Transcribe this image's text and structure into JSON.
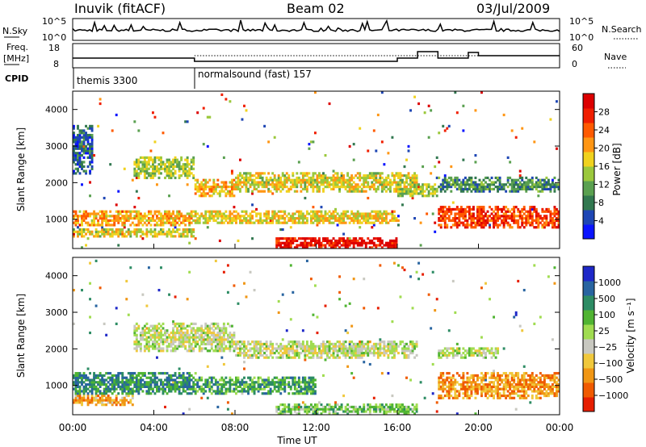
{
  "header": {
    "station": "Inuvik (fitACF)",
    "beam": "Beam 02",
    "date": "03/Jul/2009"
  },
  "info_panels": {
    "nsky_label": "N.Sky",
    "nsky_ticks": [
      "10^5",
      "10^0"
    ],
    "nsearch_label": "N.Search",
    "nsearch_ticks": [
      "10^5",
      "10^0"
    ],
    "freq_label_line1": "Freq.",
    "freq_label_line2": "[MHz]",
    "freq_ticks": [
      "18",
      "8"
    ],
    "nave_label": "Nave",
    "nave_ticks": [
      "60",
      "0"
    ],
    "cpid_label": "CPID",
    "cpid_segments": [
      {
        "label": "themis 3300",
        "start_hour": 0
      },
      {
        "label": "normalsound (fast) 157",
        "start_hour": 6
      }
    ]
  },
  "power_colorbar": {
    "label": "Power [dB]",
    "ticks": [
      "28",
      "24",
      "20",
      "16",
      "12",
      "8",
      "4"
    ],
    "colors": [
      "#0a14ff",
      "#1e46b4",
      "#327850",
      "#5aa050",
      "#9bc83c",
      "#f0d21e",
      "#ff9614",
      "#ff5a00",
      "#f01e00",
      "#dc0000"
    ]
  },
  "velocity_colorbar": {
    "label": "Velocity [m s⁻¹]",
    "ticks": [
      "1000",
      "500",
      "100",
      "25",
      "−25",
      "−100",
      "−500",
      "−1000"
    ],
    "colors": [
      "#1e28c8",
      "#2864a0",
      "#2d8c64",
      "#50b432",
      "#a0dc50",
      "#c8c8c0",
      "#f0c83c",
      "#f09614",
      "#f05a00",
      "#e61e00"
    ]
  },
  "chart_data": [
    {
      "type": "heatmap",
      "name": "Power",
      "ylabel": "Slant Range [km]",
      "ylim": [
        200,
        4500
      ],
      "xlim_hours": [
        0,
        24
      ],
      "yticks": [
        1000,
        2000,
        3000,
        4000
      ],
      "bands": [
        {
          "start": 0,
          "end": 6,
          "center": 1050,
          "width": 220,
          "level": 0.62
        },
        {
          "start": 0,
          "end": 6,
          "center": 650,
          "width": 120,
          "level": 0.52
        },
        {
          "start": 3,
          "end": 6,
          "center": 2400,
          "width": 300,
          "level": 0.45
        },
        {
          "start": 6,
          "end": 8,
          "center": 1850,
          "width": 250,
          "level": 0.6
        },
        {
          "start": 6,
          "end": 16,
          "center": 1050,
          "width": 200,
          "level": 0.55
        },
        {
          "start": 8,
          "end": 17,
          "center": 2000,
          "width": 260,
          "level": 0.52
        },
        {
          "start": 10,
          "end": 16,
          "center": 350,
          "width": 180,
          "level": 0.92
        },
        {
          "start": 16,
          "end": 18,
          "center": 1800,
          "width": 200,
          "level": 0.45
        },
        {
          "start": 18,
          "end": 24,
          "center": 1050,
          "width": 300,
          "level": 0.8
        },
        {
          "start": 18,
          "end": 24,
          "center": 1950,
          "width": 200,
          "level": 0.3
        },
        {
          "start": 0,
          "end": 1,
          "center": 2900,
          "width": 700,
          "level": 0.2
        }
      ]
    },
    {
      "type": "heatmap",
      "name": "Velocity",
      "ylabel": "Slant Range [km]",
      "ylim": [
        200,
        4500
      ],
      "xlim_hours": [
        0,
        24
      ],
      "yticks": [
        1000,
        2000,
        3000,
        4000
      ],
      "xticks": [
        "00:00",
        "04:00",
        "08:00",
        "12:00",
        "16:00",
        "20:00",
        "00:00"
      ],
      "xlabel": "Time UT",
      "bands": [
        {
          "start": 0,
          "end": 6,
          "center": 1050,
          "width": 300,
          "level": 0.25
        },
        {
          "start": 0,
          "end": 3,
          "center": 600,
          "width": 150,
          "level": 0.72
        },
        {
          "start": 3,
          "end": 8,
          "center": 2300,
          "width": 400,
          "level": 0.52
        },
        {
          "start": 8,
          "end": 17,
          "center": 2000,
          "width": 250,
          "level": 0.52
        },
        {
          "start": 6,
          "end": 12,
          "center": 1000,
          "width": 250,
          "level": 0.3
        },
        {
          "start": 10,
          "end": 17,
          "center": 350,
          "width": 150,
          "level": 0.4
        },
        {
          "start": 18,
          "end": 24,
          "center": 1000,
          "width": 350,
          "level": 0.75
        },
        {
          "start": 18,
          "end": 21,
          "center": 1900,
          "width": 150,
          "level": 0.5
        }
      ]
    }
  ]
}
